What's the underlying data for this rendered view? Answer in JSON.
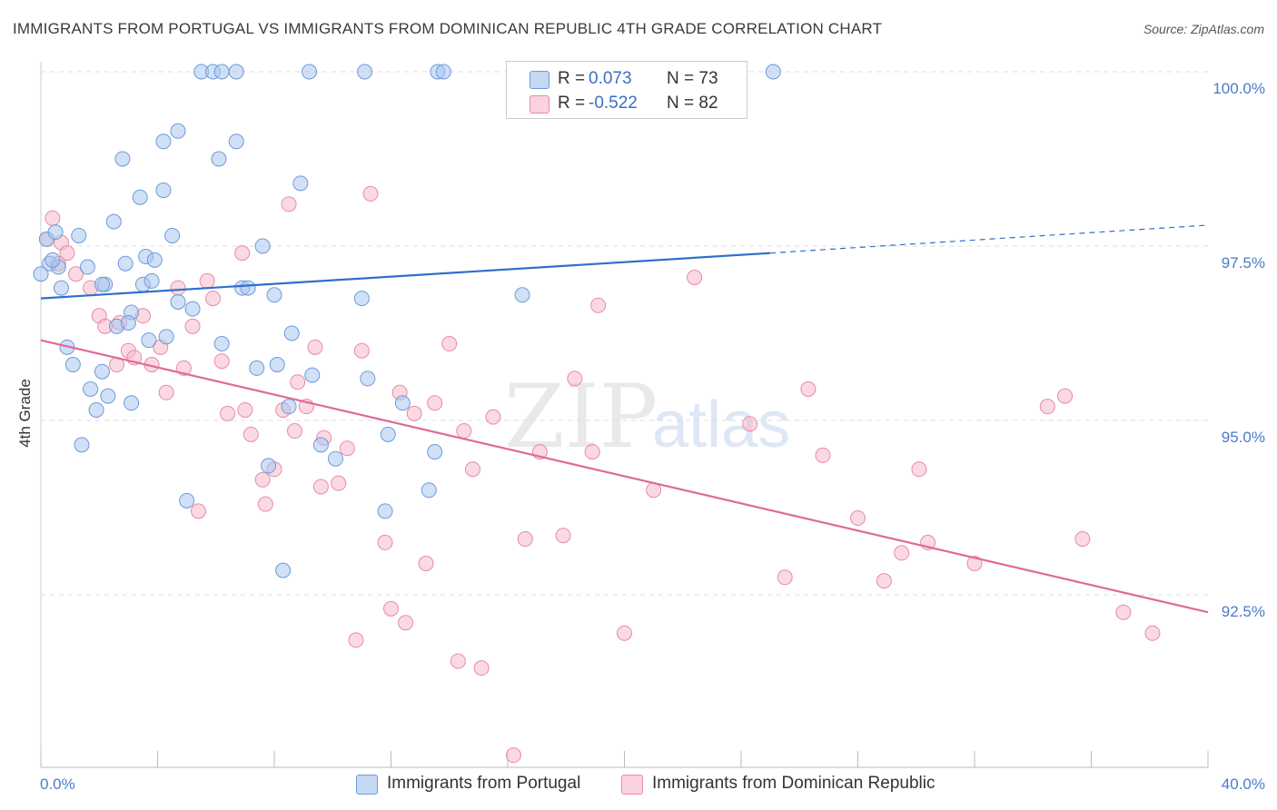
{
  "header": {
    "title": "IMMIGRANTS FROM PORTUGAL VS IMMIGRANTS FROM DOMINICAN REPUBLIC 4TH GRADE CORRELATION CHART",
    "source": "Source: ZipAtlas.com"
  },
  "watermark": {
    "zip": "ZIP",
    "atlas": "atlas"
  },
  "legend": {
    "r_label": "R =",
    "rows": [
      {
        "r_value": "0.073",
        "n_text": "N = 73",
        "color": "#a9c6ef"
      },
      {
        "r_value": "-0.522",
        "n_text": "N = 82",
        "color": "#f7b9cc"
      }
    ]
  },
  "bottom_legend": {
    "items": [
      "Immigrants from Portugal",
      "Immigrants from Dominican Republic"
    ]
  },
  "colors": {
    "blue_fill": "#a9c6ef",
    "blue_stroke": "#6f9ad8",
    "blue_line": "#2f6fcb",
    "pink_fill": "#f7b9cc",
    "pink_stroke": "#e88aa8",
    "pink_line": "#e0699a",
    "tick_text": "#4a7bc8",
    "grid": "#dcdcdc"
  },
  "chart_data": {
    "type": "scatter",
    "title": "IMMIGRANTS FROM PORTUGAL VS IMMIGRANTS FROM DOMINICAN REPUBLIC 4TH GRADE CORRELATION CHART",
    "xlabel": "",
    "ylabel": "4th Grade",
    "xlim": [
      0,
      40
    ],
    "ylim": [
      90.0,
      100.25
    ],
    "x_tick_labels": [
      "0.0%",
      "40.0%"
    ],
    "y_ticks": [
      92.5,
      95.0,
      97.5,
      100.0
    ],
    "y_tick_labels": [
      "92.5%",
      "95.0%",
      "97.5%",
      "100.0%"
    ],
    "grid": true,
    "legend_position": "top-center",
    "series": [
      {
        "name": "Immigrants from Portugal",
        "r": 0.073,
        "n": 73,
        "trend": {
          "x0": 0,
          "y0": 96.75,
          "x1": 25,
          "y1": 97.4,
          "dashed_to_x": 40,
          "dashed_to_y": 97.8
        },
        "points": [
          [
            0.0,
            97.1
          ],
          [
            0.2,
            97.6
          ],
          [
            0.3,
            97.25
          ],
          [
            0.5,
            97.7
          ],
          [
            0.6,
            97.2
          ],
          [
            0.7,
            96.9
          ],
          [
            0.9,
            96.05
          ],
          [
            1.1,
            95.8
          ],
          [
            1.3,
            97.65
          ],
          [
            1.4,
            94.65
          ],
          [
            1.7,
            95.45
          ],
          [
            2.2,
            96.95
          ],
          [
            1.9,
            95.15
          ],
          [
            2.1,
            95.7
          ],
          [
            2.3,
            95.35
          ],
          [
            2.5,
            97.85
          ],
          [
            2.6,
            96.35
          ],
          [
            2.8,
            98.75
          ],
          [
            2.9,
            97.25
          ],
          [
            3.1,
            96.55
          ],
          [
            3.1,
            95.25
          ],
          [
            3.4,
            98.2
          ],
          [
            3.5,
            96.95
          ],
          [
            3.6,
            97.35
          ],
          [
            3.7,
            96.15
          ],
          [
            3.8,
            97.0
          ],
          [
            3.9,
            97.3
          ],
          [
            4.2,
            99.0
          ],
          [
            4.3,
            96.2
          ],
          [
            4.2,
            98.3
          ],
          [
            4.5,
            97.65
          ],
          [
            4.7,
            96.7
          ],
          [
            4.7,
            99.15
          ],
          [
            5.0,
            93.85
          ],
          [
            5.2,
            96.6
          ],
          [
            5.5,
            100.0
          ],
          [
            5.9,
            100.0
          ],
          [
            6.1,
            98.75
          ],
          [
            6.2,
            100.0
          ],
          [
            6.2,
            96.1
          ],
          [
            6.7,
            99.0
          ],
          [
            6.7,
            100.0
          ],
          [
            6.9,
            96.9
          ],
          [
            7.1,
            96.9
          ],
          [
            7.4,
            95.75
          ],
          [
            7.6,
            97.5
          ],
          [
            7.8,
            94.35
          ],
          [
            8.0,
            96.8
          ],
          [
            8.1,
            95.8
          ],
          [
            8.3,
            92.85
          ],
          [
            8.5,
            95.2
          ],
          [
            8.6,
            96.25
          ],
          [
            8.9,
            98.4
          ],
          [
            9.2,
            100.0
          ],
          [
            9.3,
            95.65
          ],
          [
            9.6,
            94.65
          ],
          [
            10.1,
            94.45
          ],
          [
            11.1,
            100.0
          ],
          [
            11.0,
            96.75
          ],
          [
            11.2,
            95.6
          ],
          [
            11.8,
            93.7
          ],
          [
            11.9,
            94.8
          ],
          [
            12.4,
            95.25
          ],
          [
            13.3,
            94.0
          ],
          [
            13.5,
            94.55
          ],
          [
            13.6,
            100.0
          ],
          [
            13.8,
            100.0
          ],
          [
            16.5,
            96.8
          ],
          [
            25.1,
            100.0
          ],
          [
            2.1,
            96.95
          ],
          [
            3.0,
            96.4
          ],
          [
            0.4,
            97.3
          ],
          [
            1.6,
            97.2
          ]
        ]
      },
      {
        "name": "Immigrants from Dominican Republic",
        "r": -0.522,
        "n": 82,
        "trend": {
          "x0": 0,
          "y0": 96.15,
          "x1": 40,
          "y1": 92.25
        },
        "points": [
          [
            0.4,
            97.9
          ],
          [
            0.7,
            97.55
          ],
          [
            0.9,
            97.4
          ],
          [
            1.2,
            97.1
          ],
          [
            1.7,
            96.9
          ],
          [
            2.0,
            96.5
          ],
          [
            2.2,
            96.35
          ],
          [
            2.6,
            95.8
          ],
          [
            2.7,
            96.4
          ],
          [
            3.0,
            96.0
          ],
          [
            3.2,
            95.9
          ],
          [
            3.5,
            96.5
          ],
          [
            3.8,
            95.8
          ],
          [
            4.1,
            96.05
          ],
          [
            4.3,
            95.4
          ],
          [
            4.7,
            96.9
          ],
          [
            4.9,
            95.75
          ],
          [
            5.2,
            96.35
          ],
          [
            5.4,
            93.7
          ],
          [
            5.7,
            97.0
          ],
          [
            5.9,
            96.75
          ],
          [
            6.2,
            95.85
          ],
          [
            6.4,
            95.1
          ],
          [
            6.9,
            97.4
          ],
          [
            7.0,
            95.15
          ],
          [
            7.2,
            94.8
          ],
          [
            7.6,
            94.15
          ],
          [
            7.7,
            93.8
          ],
          [
            8.0,
            94.3
          ],
          [
            8.3,
            95.15
          ],
          [
            8.5,
            98.1
          ],
          [
            8.7,
            94.85
          ],
          [
            8.8,
            95.55
          ],
          [
            9.1,
            95.2
          ],
          [
            9.4,
            96.05
          ],
          [
            9.6,
            94.05
          ],
          [
            9.7,
            94.75
          ],
          [
            10.2,
            94.1
          ],
          [
            10.5,
            94.6
          ],
          [
            10.8,
            91.85
          ],
          [
            11.0,
            96.0
          ],
          [
            11.3,
            98.25
          ],
          [
            11.8,
            93.25
          ],
          [
            12.0,
            92.3
          ],
          [
            12.3,
            95.4
          ],
          [
            12.5,
            92.1
          ],
          [
            12.8,
            95.1
          ],
          [
            13.2,
            92.95
          ],
          [
            13.5,
            95.25
          ],
          [
            14.0,
            96.1
          ],
          [
            14.3,
            91.55
          ],
          [
            14.5,
            94.85
          ],
          [
            14.8,
            94.3
          ],
          [
            15.1,
            91.45
          ],
          [
            15.5,
            95.05
          ],
          [
            16.2,
            90.2
          ],
          [
            16.6,
            93.3
          ],
          [
            17.1,
            94.55
          ],
          [
            17.9,
            93.35
          ],
          [
            18.3,
            95.6
          ],
          [
            18.9,
            94.55
          ],
          [
            19.1,
            96.65
          ],
          [
            20.0,
            91.95
          ],
          [
            21.0,
            94.0
          ],
          [
            22.4,
            97.05
          ],
          [
            24.3,
            94.95
          ],
          [
            25.5,
            92.75
          ],
          [
            26.3,
            95.45
          ],
          [
            26.8,
            94.5
          ],
          [
            28.0,
            93.6
          ],
          [
            28.9,
            92.7
          ],
          [
            29.5,
            93.1
          ],
          [
            30.1,
            94.3
          ],
          [
            30.4,
            93.25
          ],
          [
            32.0,
            92.95
          ],
          [
            34.5,
            95.2
          ],
          [
            35.1,
            95.35
          ],
          [
            35.7,
            93.3
          ],
          [
            37.1,
            92.25
          ],
          [
            38.1,
            91.95
          ],
          [
            0.2,
            97.6
          ],
          [
            0.6,
            97.25
          ]
        ]
      }
    ]
  }
}
